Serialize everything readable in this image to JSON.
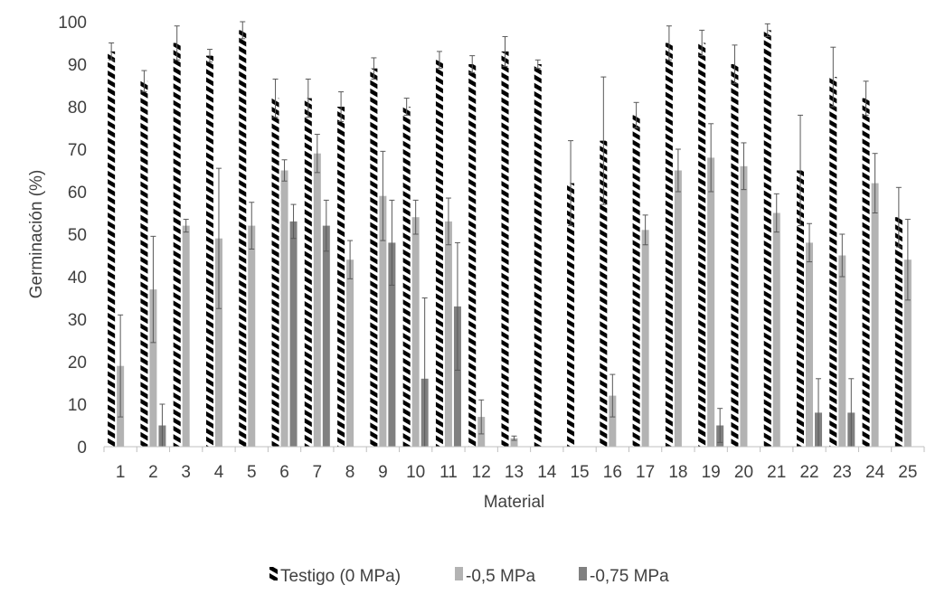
{
  "chart_data": {
    "type": "bar",
    "title": "",
    "xlabel": "Material",
    "ylabel": "Germinación (%)",
    "ylim": [
      0,
      100
    ],
    "yticks": [
      0,
      10,
      20,
      30,
      40,
      50,
      60,
      70,
      80,
      90,
      100
    ],
    "grid": false,
    "legend_position": "bottom",
    "categories": [
      "1",
      "2",
      "3",
      "4",
      "5",
      "6",
      "7",
      "8",
      "9",
      "10",
      "11",
      "12",
      "13",
      "14",
      "15",
      "16",
      "17",
      "18",
      "19",
      "20",
      "21",
      "22",
      "23",
      "24",
      "25"
    ],
    "series": [
      {
        "name": "Testigo (0 MPa)",
        "pattern": "hatched",
        "color": "#000000",
        "values": [
          93,
          86,
          95,
          92,
          98,
          82,
          82,
          80,
          89,
          80,
          91,
          90,
          93,
          90,
          62,
          72,
          78,
          95,
          95,
          90,
          98,
          65,
          87,
          82,
          54
        ],
        "errors": [
          2,
          2.5,
          4,
          1.5,
          2,
          4.5,
          4.5,
          3.5,
          2.5,
          2,
          2,
          2,
          3.5,
          1,
          10,
          15,
          3,
          4,
          3,
          4.5,
          1.5,
          13,
          7,
          4,
          7
        ]
      },
      {
        "name": "-0,5 MPa",
        "color": "#b3b3b3",
        "values": [
          19,
          37,
          52,
          49,
          52,
          65,
          69,
          44,
          59,
          54,
          53,
          7,
          2,
          0,
          0,
          12,
          51,
          65,
          68,
          66,
          55,
          48,
          45,
          62,
          44
        ],
        "errors": [
          12,
          12.5,
          1.5,
          16.5,
          5.5,
          2.5,
          4.5,
          4.5,
          10.5,
          4,
          5.5,
          4,
          0.5,
          0,
          0,
          5,
          3.5,
          5,
          8,
          5.5,
          4.5,
          4.5,
          5,
          7,
          9.5
        ]
      },
      {
        "name": "-0,75 MPa",
        "color": "#808080",
        "values": [
          0,
          5,
          0,
          0,
          0,
          53,
          52,
          0,
          48,
          16,
          33,
          0,
          0,
          0,
          0,
          0,
          0,
          0,
          5,
          0,
          0,
          8,
          8,
          0,
          0
        ],
        "errors": [
          0,
          5,
          0,
          0,
          0,
          4,
          6,
          0,
          10,
          19,
          15,
          0,
          0,
          0,
          0,
          0,
          0,
          0,
          4,
          0,
          0,
          8,
          8,
          0,
          0
        ]
      }
    ]
  }
}
